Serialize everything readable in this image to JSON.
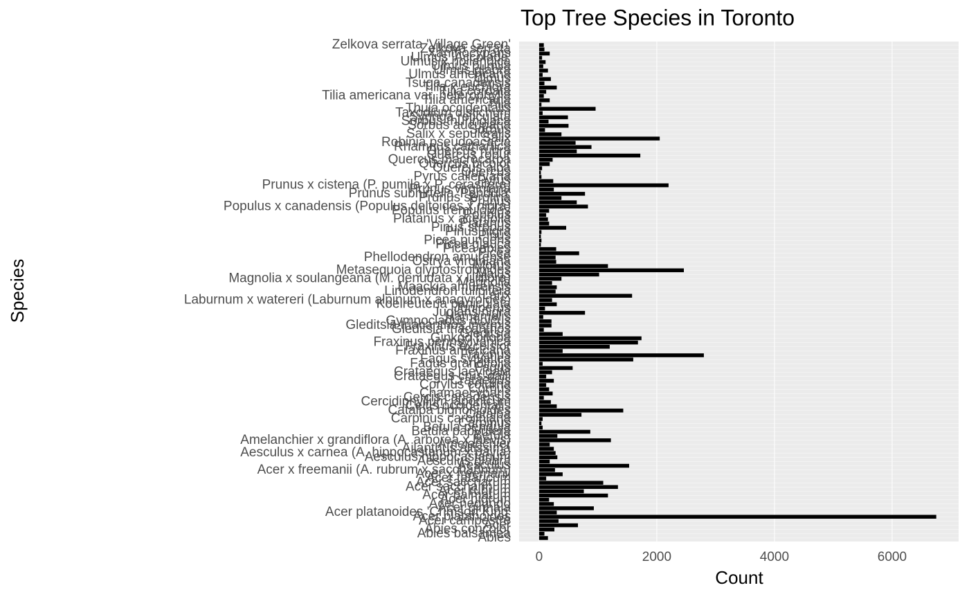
{
  "chart_data": {
    "type": "bar",
    "orientation": "horizontal",
    "title": "Top Tree Species in Toronto",
    "x_label": "Count",
    "y_label": "Species",
    "color": "#000000",
    "grid": true,
    "xlim": [
      -340,
      7130
    ],
    "xticks": [
      0,
      2000,
      4000,
      6000
    ],
    "categories": [
      "Abies",
      "Abies balsamea",
      "Abies concolor",
      "Acer",
      "Acer campestre",
      "Acer platanoides",
      "Acer platanoides 'Crimson King'",
      "Acer ginnala",
      "Acer negundo",
      "Acer nigrum",
      "Acer palmatum",
      "Acer rubrum",
      "Acer saccharinum",
      "Acer saccharum",
      "Acer tataricum",
      "Acer x freemanii",
      "Acer x freemanii (A. rubrum x saccharinum)",
      "Aesculus",
      "Aesculus glabra",
      "Aesculus hippocastanum",
      "Aesculus x carnea (A. hippocastanum x pavia)",
      "Ailanthus altissima",
      "Amelanchier",
      "Amelanchier x grandiflora (A. arborea x laevis)",
      "Betula",
      "Betula papyrifera",
      "Betula pendula",
      "Carpinus",
      "Carpinus caroliniana",
      "Catalpa",
      "Catalpa bignonioides",
      "Celtis occidentalis",
      "Cercidiphyllum japonicum",
      "Cercis canadensis",
      "Chamaecyparis",
      "Cornus",
      "Corylus colurna",
      "Crataegus",
      "Crataegus crus-galli",
      "Crataegus laevigata",
      "Fagus",
      "Fagus grandifolia",
      "Fagus sylvatica",
      "Fraxinus",
      "Fraxinus americana",
      "Fraxinus excelsior",
      "Fraxinus pennsylvanica",
      "Ginkgo biloba",
      "Gleditsia",
      "Gleditsia triacanthos",
      "Gleditsia triacanthos inermis",
      "Gymnocladus dioicus",
      "Hamamelis",
      "Juglans nigra",
      "Juniperus",
      "Koelreuteria paniculata",
      "Laburnum x watereri (Laburnum alpinum x anagyroides)",
      "Larix",
      "Liriodendron tulipifera",
      "Maackia amurensis",
      "Magnolia",
      "Magnolia x soulangeana (M. denudata x liliiflora)",
      "Malus",
      "Metasequoia glyptostroboides",
      "Morus",
      "Ostrya virginiana",
      "Phellodendron amurense",
      "Picea",
      "Picea abies",
      "Picea glauca",
      "Picea pungens",
      "Pinus",
      "Pinus nigra",
      "Pinus strobus",
      "Platanus",
      "Platanus x acerifolia",
      "Populus",
      "Populus tremuloides",
      "Populus x canadensis (Populus deltoides x nigra)",
      "Prunus",
      "Prunus serotina",
      "Prunus subhirtella 'Pendula'",
      "Prunus virginiana",
      "Prunus x cistena (P. pumila x P. cerasifera)",
      "Pyrus",
      "Pyrus calleryana",
      "Quercus",
      "Quercus alba",
      "Quercus bicolor",
      "Quercus macrocarpa",
      "Quercus robur",
      "Quercus rubra",
      "Rhamnus cathartica",
      "Robinia pseudoacacia",
      "Salix",
      "Salix x sepulcralis",
      "Sorbus",
      "Sorbus aucuparia",
      "Sorbus thuringiaca",
      "Syringa reticulata",
      "Taxodium distichum",
      "Thuja occidentalis",
      "Tilia",
      "Tilia americana",
      "Tilia americana var. heterophylla",
      "Tilia cordata",
      "Tilia x euchlora",
      "Tsuga canadensis",
      "Ulmus",
      "Ulmus americana",
      "Ulmus glabra",
      "Ulmus pumila",
      "Ulmus x hollandica",
      "Ulmus 'Accolade'",
      "Xanthocyparis",
      "Zelkova serrata",
      "Zelkova serrata 'Village Green'"
    ],
    "values": [
      150,
      90,
      260,
      660,
      330,
      6750,
      300,
      930,
      250,
      170,
      1170,
      760,
      1340,
      1090,
      120,
      400,
      270,
      1530,
      180,
      310,
      280,
      250,
      180,
      1220,
      310,
      870,
      60,
      40,
      60,
      720,
      1430,
      300,
      200,
      80,
      230,
      170,
      120,
      250,
      120,
      220,
      570,
      60,
      1600,
      2800,
      400,
      1200,
      1680,
      1740,
      400,
      80,
      210,
      210,
      70,
      780,
      100,
      300,
      220,
      1580,
      280,
      300,
      220,
      380,
      1020,
      2460,
      1170,
      290,
      280,
      680,
      290,
      30,
      40,
      30,
      40,
      460,
      170,
      150,
      120,
      170,
      830,
      640,
      380,
      780,
      250,
      2200,
      240,
      40,
      30,
      50,
      180,
      230,
      1720,
      640,
      890,
      620,
      2050,
      380,
      100,
      500,
      160,
      490,
      60,
      960,
      40,
      180,
      80,
      120,
      300,
      90,
      200,
      60,
      150,
      70,
      110,
      50,
      180,
      90,
      80
    ]
  }
}
